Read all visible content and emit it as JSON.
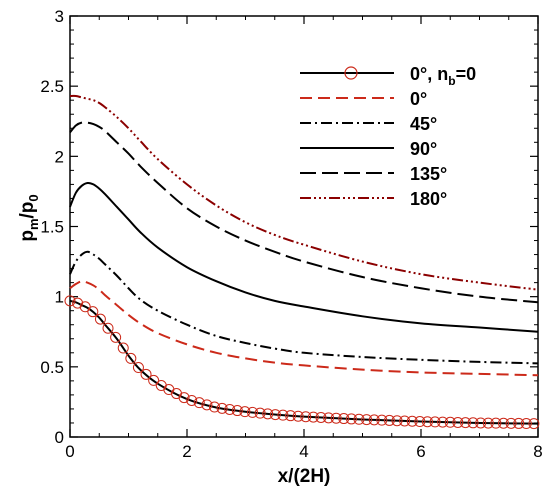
{
  "chart_data": {
    "type": "line",
    "title": "",
    "xlabel": "x/(2H)",
    "ylabel_main": "p",
    "ylabel_sub1": "m",
    "ylabel_mid": "/p",
    "ylabel_sub2": "0",
    "xlim": [
      0,
      8
    ],
    "ylim": [
      0,
      3
    ],
    "xticks": [
      "0",
      "2",
      "4",
      "6",
      "8"
    ],
    "yticks": [
      "0",
      "0.5",
      "1",
      "1.5",
      "2",
      "2.5",
      "3"
    ],
    "grid": false,
    "legend_position": "top-right",
    "x": [
      0,
      0.1,
      0.2,
      0.3,
      0.4,
      0.5,
      0.6,
      0.8,
      1.0,
      1.2,
      1.5,
      2.0,
      2.5,
      3.0,
      3.5,
      4.0,
      5.0,
      6.0,
      7.0,
      8.0
    ],
    "series": [
      {
        "label_main": "0°, n",
        "label_sub": "b",
        "label_end": "=0",
        "color": "#000000",
        "dash": "",
        "marker": "circle",
        "marker_color": "#cc2a1a",
        "values": [
          0.97,
          0.96,
          0.94,
          0.92,
          0.89,
          0.85,
          0.8,
          0.7,
          0.58,
          0.48,
          0.38,
          0.27,
          0.21,
          0.18,
          0.16,
          0.145,
          0.125,
          0.11,
          0.1,
          0.095
        ]
      },
      {
        "label_main": "0°",
        "color": "#cc2a1a",
        "dash": "12,6",
        "values": [
          1.06,
          1.09,
          1.11,
          1.1,
          1.08,
          1.05,
          1.01,
          0.94,
          0.87,
          0.81,
          0.74,
          0.66,
          0.6,
          0.56,
          0.53,
          0.51,
          0.48,
          0.46,
          0.45,
          0.44
        ]
      },
      {
        "label_main": "45°",
        "color": "#000000",
        "dash": "11,4,2,4",
        "values": [
          1.16,
          1.25,
          1.3,
          1.32,
          1.3,
          1.27,
          1.23,
          1.15,
          1.06,
          0.98,
          0.9,
          0.8,
          0.72,
          0.67,
          0.63,
          0.6,
          0.57,
          0.55,
          0.535,
          0.525
        ]
      },
      {
        "label_main": "90°",
        "color": "#000000",
        "dash": "",
        "values": [
          1.64,
          1.74,
          1.79,
          1.81,
          1.8,
          1.77,
          1.73,
          1.64,
          1.55,
          1.46,
          1.35,
          1.21,
          1.11,
          1.03,
          0.97,
          0.93,
          0.86,
          0.81,
          0.78,
          0.75
        ]
      },
      {
        "label_main": "135°",
        "color": "#000000",
        "dash": "16,6",
        "values": [
          2.17,
          2.22,
          2.24,
          2.24,
          2.23,
          2.21,
          2.18,
          2.1,
          2.02,
          1.93,
          1.81,
          1.63,
          1.5,
          1.4,
          1.32,
          1.25,
          1.14,
          1.06,
          1.0,
          0.96
        ]
      },
      {
        "label_main": "180°",
        "color": "#8b0000",
        "dash": "11,3,2,3,2,3,2,3",
        "values": [
          2.43,
          2.43,
          2.42,
          2.41,
          2.4,
          2.38,
          2.35,
          2.28,
          2.2,
          2.11,
          1.98,
          1.8,
          1.65,
          1.53,
          1.44,
          1.37,
          1.25,
          1.16,
          1.1,
          1.05
        ]
      }
    ]
  }
}
